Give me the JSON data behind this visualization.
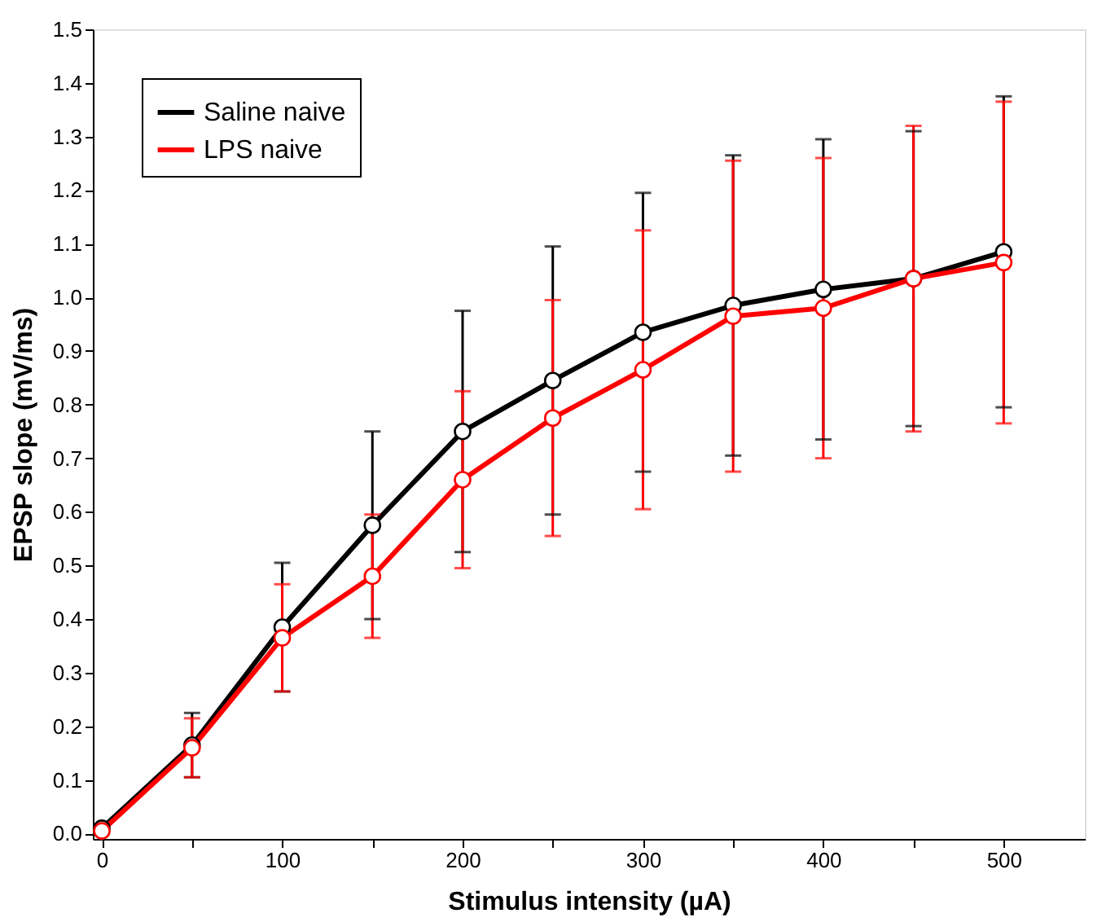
{
  "chart_data": {
    "type": "line",
    "xlabel": "Stimulus intensity (µA)",
    "ylabel": "EPSP slope (mV/ms)",
    "x": [
      0,
      50,
      100,
      150,
      200,
      250,
      300,
      350,
      400,
      450,
      500
    ],
    "xlim": [
      -5,
      545
    ],
    "xticks": [
      0,
      {
        "value": 50,
        "label": null
      },
      100,
      {
        "value": 150,
        "label": null
      },
      200,
      {
        "value": 250,
        "label": null
      },
      300,
      {
        "value": 350,
        "label": null
      },
      400,
      {
        "value": 450,
        "label": null
      },
      500
    ],
    "ylim": [
      -0.01,
      1.5
    ],
    "yticks": [
      {
        "value": 0,
        "label": "0.0"
      },
      0.1,
      0.2,
      0.3,
      0.4,
      0.5,
      0.6,
      0.7,
      0.8,
      0.9,
      {
        "value": 1,
        "label": "1.0"
      },
      1.1,
      1.2,
      1.3,
      1.4,
      1.5
    ],
    "series": [
      {
        "name": "Saline naive",
        "color": "#000000",
        "values": [
          0.01,
          0.165,
          0.385,
          0.575,
          0.75,
          0.845,
          0.935,
          0.985,
          1.015,
          1.035,
          1.085
        ],
        "errors": [
          null,
          0.06,
          0.12,
          0.175,
          0.225,
          0.25,
          0.26,
          0.28,
          0.28,
          0.275,
          0.29
        ]
      },
      {
        "name": "LPS naive",
        "color": "#ff0000",
        "values": [
          0.005,
          0.16,
          0.365,
          0.48,
          0.66,
          0.775,
          0.865,
          0.965,
          0.98,
          1.035,
          1.065
        ],
        "errors": [
          null,
          0.055,
          0.1,
          0.115,
          0.165,
          0.22,
          0.26,
          0.29,
          0.28,
          0.285,
          0.3
        ]
      }
    ],
    "marker": "circle",
    "line_style": "solid",
    "legend": "top left",
    "grid": false
  }
}
